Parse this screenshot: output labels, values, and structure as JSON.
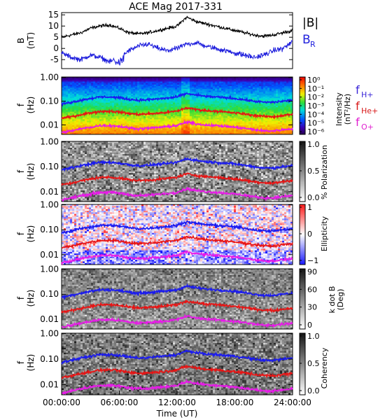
{
  "title": "ACE Mag 2017-331",
  "colors": {
    "B_total": "#000000",
    "B_R": "#1f1fdd",
    "f_H": "#1a1af0",
    "f_He": "#e81414",
    "f_O": "#e81ae8",
    "label_H": "#3a26d8",
    "label_He": "#d81a1a",
    "label_O": "#e020d0"
  },
  "legend_top": {
    "total": "|B|",
    "radial": "B",
    "radial_sub": "R"
  },
  "legend_freq": {
    "H": "f",
    "H_sub": "H+",
    "He": "f",
    "He_sub": "He+",
    "O": "f",
    "O_sub": "O+"
  },
  "chart_data": [
    {
      "type": "line",
      "panel": "magnetic-field",
      "ylabel": "B (nT)",
      "ylabel_main": "B",
      "ylabel_unit": "(nT)",
      "ylim": [
        -9,
        16
      ],
      "yticks": [
        "15",
        "10",
        "5",
        "0",
        "-5"
      ],
      "x_hours": [
        0,
        1,
        2,
        3,
        4,
        5,
        6,
        7,
        8,
        9,
        10,
        11,
        12,
        13,
        14,
        15,
        16,
        17,
        18,
        19,
        20,
        21,
        22,
        23,
        24
      ],
      "series": [
        {
          "name": "|B|",
          "values": [
            5,
            6,
            7,
            9,
            10,
            10.5,
            9,
            7,
            6.5,
            7,
            8,
            9,
            10,
            14,
            12,
            11,
            10,
            9,
            8,
            7,
            6,
            5.5,
            6,
            7,
            8
          ]
        },
        {
          "name": "B_R",
          "values": [
            -2,
            -4,
            -5,
            -3,
            -4,
            -6,
            -4,
            -1,
            1,
            2,
            0,
            -1,
            0,
            2,
            2.5,
            1,
            0,
            -1,
            -2,
            -3,
            -4,
            -3,
            -1,
            0,
            3
          ]
        }
      ]
    },
    {
      "type": "heatmap",
      "panel": "power-spectrum",
      "ylabel": "f (Hz)",
      "ylabel_main": "f",
      "ylabel_unit": "(Hz)",
      "yticks": [
        "1.00",
        "0.10",
        "0.01"
      ],
      "colorbar_label": "Intensity (nT²/Hz)",
      "colorbar_title": "Intensity",
      "colorbar_unit": "(nT²/Hz)",
      "colorbar_ticks": [
        "10⁰",
        "10⁻¹",
        "10⁻²",
        "10⁻³",
        "10⁻⁴",
        "10⁻⁵",
        "10⁻⁶"
      ],
      "colorbar_range": [
        -6.5,
        0.5
      ]
    },
    {
      "type": "heatmap",
      "panel": "polarization",
      "ylabel": "f (Hz)",
      "ylabel_main": "f",
      "ylabel_unit": "(Hz)",
      "yticks": [
        "1.00",
        "0.10",
        "0.01"
      ],
      "colorbar_label": "% Polarization",
      "colorbar_ticks": [
        "1.0",
        "0.5",
        "0.0"
      ],
      "colorbar_range": [
        0,
        1
      ]
    },
    {
      "type": "heatmap",
      "panel": "ellipticity",
      "ylabel": "f (Hz)",
      "ylabel_main": "f",
      "ylabel_unit": "(Hz)",
      "yticks": [
        "1.00",
        "0.10",
        "0.01"
      ],
      "colorbar_label": "Ellipticity",
      "colorbar_ticks": [
        "1",
        "0",
        "−1"
      ],
      "colorbar_range": [
        -1,
        1
      ]
    },
    {
      "type": "heatmap",
      "panel": "k-dot-b",
      "ylabel": "f (Hz)",
      "ylabel_main": "f",
      "ylabel_unit": "(Hz)",
      "yticks": [
        "1.00",
        "0.10",
        "0.01"
      ],
      "colorbar_label": "k dot B (Deg)",
      "colorbar_title": "k dot B",
      "colorbar_unit": "(Deg)",
      "colorbar_ticks": [
        "90",
        "60",
        "30",
        "0"
      ],
      "colorbar_range": [
        0,
        90
      ]
    },
    {
      "type": "heatmap",
      "panel": "coherency",
      "ylabel": "f (Hz)",
      "ylabel_main": "f",
      "ylabel_unit": "(Hz)",
      "yticks": [
        "1.00",
        "0.10",
        "0.01"
      ],
      "colorbar_label": "Coherency",
      "colorbar_ticks": [
        "1.0",
        "0.5",
        "0.0"
      ],
      "colorbar_range": [
        0,
        1
      ]
    }
  ],
  "gyrofrequency_overlays": {
    "x_hours": [
      0,
      1,
      2,
      3,
      4,
      5,
      6,
      7,
      8,
      9,
      10,
      11,
      12,
      13,
      14,
      15,
      16,
      17,
      18,
      19,
      20,
      21,
      22,
      23,
      24
    ],
    "f_H": [
      0.075,
      0.09,
      0.11,
      0.13,
      0.15,
      0.15,
      0.14,
      0.12,
      0.11,
      0.115,
      0.125,
      0.135,
      0.15,
      0.21,
      0.18,
      0.16,
      0.15,
      0.14,
      0.13,
      0.115,
      0.1,
      0.09,
      0.09,
      0.1,
      0.11
    ],
    "f_He": [
      0.019,
      0.022,
      0.027,
      0.032,
      0.037,
      0.038,
      0.035,
      0.03,
      0.028,
      0.029,
      0.031,
      0.034,
      0.038,
      0.052,
      0.045,
      0.04,
      0.038,
      0.035,
      0.032,
      0.029,
      0.025,
      0.023,
      0.022,
      0.025,
      0.028
    ],
    "f_O": [
      0.0047,
      0.0056,
      0.0068,
      0.008,
      0.0093,
      0.0094,
      0.0087,
      0.0075,
      0.0069,
      0.0072,
      0.0078,
      0.0084,
      0.0094,
      0.013,
      0.011,
      0.01,
      0.0094,
      0.0087,
      0.008,
      0.0072,
      0.0063,
      0.0056,
      0.0056,
      0.0063,
      0.0069
    ]
  },
  "x_axis": {
    "label": "Time (UT)",
    "ticks": [
      "00:00:00",
      "06:00:00",
      "12:00:00",
      "18:00:00",
      "24:00:00"
    ],
    "tick_hours": [
      0,
      6,
      12,
      18,
      24
    ]
  }
}
